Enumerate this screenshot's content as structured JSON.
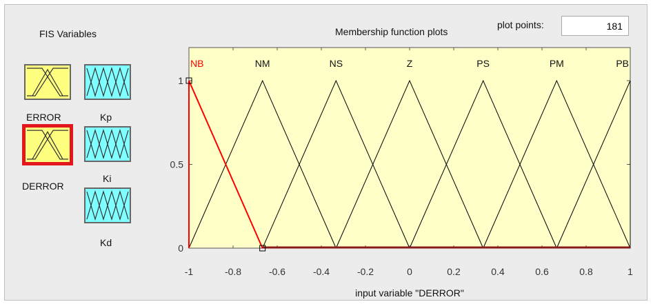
{
  "fis_variables": {
    "title": "FIS Variables",
    "inputs": [
      {
        "name": "ERROR",
        "selected": false
      },
      {
        "name": "DERROR",
        "selected": true
      }
    ],
    "outputs": [
      {
        "name": "Kp"
      },
      {
        "name": "Ki"
      },
      {
        "name": "Kd"
      }
    ],
    "input_color": "#ffff7f",
    "output_color": "#7fffff",
    "selected_color": "#e3161e"
  },
  "plot_header": {
    "title": "Membership function plots",
    "plot_points_label": "plot points:",
    "plot_points_value": "181"
  },
  "chart_data": {
    "type": "line",
    "xlabel": "input variable \"DERROR\"",
    "xlim": [
      -1,
      1
    ],
    "ylim": [
      0,
      1
    ],
    "xticks": [
      "-1",
      "-0.8",
      "-0.6",
      "-0.4",
      "-0.2",
      "0",
      "0.2",
      "0.4",
      "0.6",
      "0.8",
      "1"
    ],
    "yticks": [
      "0",
      "0.5",
      "1"
    ],
    "background": "#ffffc8",
    "line_color": "#000000",
    "highlight_color": "#ff0000",
    "selected_mf": "NB",
    "series": [
      {
        "name": "NB",
        "x": [
          -1,
          -1,
          -0.6667
        ],
        "y": [
          0,
          1,
          0
        ]
      },
      {
        "name": "NM",
        "x": [
          -1,
          -0.6667,
          -0.3333
        ],
        "y": [
          0,
          1,
          0
        ]
      },
      {
        "name": "NS",
        "x": [
          -0.6667,
          -0.3333,
          0
        ],
        "y": [
          0,
          1,
          0
        ]
      },
      {
        "name": "Z",
        "x": [
          -0.3333,
          0,
          0.3333
        ],
        "y": [
          0,
          1,
          0
        ]
      },
      {
        "name": "PS",
        "x": [
          0,
          0.3333,
          0.6667
        ],
        "y": [
          0,
          1,
          0
        ]
      },
      {
        "name": "PM",
        "x": [
          0.3333,
          0.6667,
          1
        ],
        "y": [
          0,
          1,
          0
        ]
      },
      {
        "name": "PB",
        "x": [
          0.6667,
          1,
          1
        ],
        "y": [
          0,
          1,
          0
        ]
      }
    ]
  }
}
